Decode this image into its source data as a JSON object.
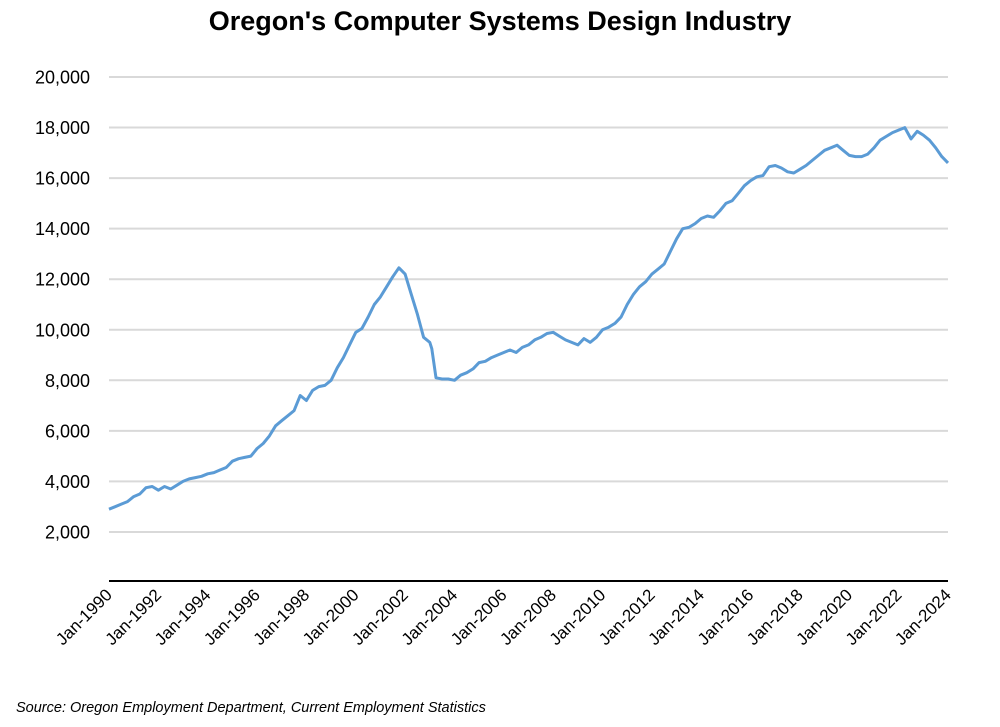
{
  "chart_data": {
    "type": "line",
    "title": "Oregon's Computer Systems Design Industry",
    "xlabel": "",
    "ylabel": "",
    "source": "Source: Oregon Employment Department, Current Employment Statistics",
    "ylim": [
      0,
      20000
    ],
    "yticks": [
      2000,
      4000,
      6000,
      8000,
      10000,
      12000,
      14000,
      16000,
      18000,
      20000
    ],
    "ytick_labels": [
      "2,000",
      "4,000",
      "6,000",
      "8,000",
      "10,000",
      "12,000",
      "14,000",
      "16,000",
      "18,000",
      "20,000"
    ],
    "xlim": [
      1990.0,
      2024.0
    ],
    "xticks": [
      1990,
      1992,
      1994,
      1996,
      1998,
      2000,
      2002,
      2004,
      2006,
      2008,
      2010,
      2012,
      2014,
      2016,
      2018,
      2020,
      2022,
      2024
    ],
    "xtick_labels": [
      "Jan-1990",
      "Jan-1992",
      "Jan-1994",
      "Jan-1996",
      "Jan-1998",
      "Jan-2000",
      "Jan-2002",
      "Jan-2004",
      "Jan-2006",
      "Jan-2008",
      "Jan-2010",
      "Jan-2012",
      "Jan-2014",
      "Jan-2016",
      "Jan-2018",
      "Jan-2020",
      "Jan-2022",
      "Jan-2024"
    ],
    "grid": true,
    "legend": "none",
    "series": [
      {
        "name": "Computer Systems Design Employment",
        "color": "#5B9BD5",
        "x": [
          1990.0,
          1990.25,
          1990.5,
          1990.75,
          1991.0,
          1991.25,
          1991.5,
          1991.75,
          1992.0,
          1992.25,
          1992.5,
          1992.75,
          1993.0,
          1993.25,
          1993.5,
          1993.75,
          1994.0,
          1994.25,
          1994.5,
          1994.75,
          1995.0,
          1995.25,
          1995.5,
          1995.75,
          1996.0,
          1996.25,
          1996.5,
          1996.75,
          1997.0,
          1997.25,
          1997.5,
          1997.75,
          1998.0,
          1998.25,
          1998.5,
          1998.75,
          1999.0,
          1999.25,
          1999.5,
          1999.75,
          2000.0,
          2000.25,
          2000.5,
          2000.75,
          2001.0,
          2001.25,
          2001.5,
          2001.75,
          2002.0,
          2002.25,
          2002.5,
          2002.75,
          2003.0,
          2003.08,
          2003.25,
          2003.5,
          2003.75,
          2004.0,
          2004.25,
          2004.5,
          2004.75,
          2005.0,
          2005.25,
          2005.5,
          2005.75,
          2006.0,
          2006.25,
          2006.5,
          2006.75,
          2007.0,
          2007.25,
          2007.5,
          2007.75,
          2008.0,
          2008.25,
          2008.5,
          2008.75,
          2009.0,
          2009.25,
          2009.5,
          2009.75,
          2010.0,
          2010.25,
          2010.5,
          2010.75,
          2011.0,
          2011.25,
          2011.5,
          2011.75,
          2012.0,
          2012.25,
          2012.5,
          2012.75,
          2013.0,
          2013.25,
          2013.5,
          2013.75,
          2014.0,
          2014.25,
          2014.5,
          2014.75,
          2015.0,
          2015.25,
          2015.5,
          2015.75,
          2016.0,
          2016.25,
          2016.5,
          2016.75,
          2017.0,
          2017.25,
          2017.5,
          2017.75,
          2018.0,
          2018.25,
          2018.5,
          2018.75,
          2019.0,
          2019.25,
          2019.5,
          2019.75,
          2020.0,
          2020.25,
          2020.5,
          2020.75,
          2021.0,
          2021.25,
          2021.5,
          2021.75,
          2022.0,
          2022.25,
          2022.5,
          2022.75,
          2023.0,
          2023.25,
          2023.5,
          2023.75,
          2024.0
        ],
        "values": [
          2900,
          3000,
          3100,
          3200,
          3400,
          3500,
          3750,
          3800,
          3650,
          3800,
          3700,
          3850,
          4000,
          4100,
          4150,
          4200,
          4300,
          4350,
          4450,
          4550,
          4800,
          4900,
          4950,
          5000,
          5300,
          5500,
          5800,
          6200,
          6400,
          6600,
          6800,
          7400,
          7200,
          7600,
          7750,
          7800,
          8000,
          8500,
          8900,
          9400,
          9900,
          10050,
          10500,
          11000,
          11300,
          11700,
          12100,
          12450,
          12200,
          11400,
          10600,
          9700,
          9500,
          9250,
          8100,
          8050,
          8050,
          8000,
          8200,
          8300,
          8450,
          8700,
          8750,
          8900,
          9000,
          9100,
          9200,
          9100,
          9300,
          9400,
          9600,
          9700,
          9850,
          9900,
          9750,
          9600,
          9500,
          9400,
          9650,
          9500,
          9700,
          10000,
          10100,
          10250,
          10500,
          11000,
          11400,
          11700,
          11900,
          12200,
          12400,
          12600,
          13100,
          13600,
          14000,
          14050,
          14200,
          14400,
          14500,
          14450,
          14700,
          15000,
          15100,
          15400,
          15700,
          15900,
          16050,
          16100,
          16450,
          16500,
          16400,
          16250,
          16200,
          16350,
          16500,
          16700,
          16900,
          17100,
          17200,
          17300,
          17100,
          16900,
          16850,
          16850,
          16950,
          17200,
          17500,
          17650,
          17800,
          17900,
          18000,
          17550,
          17850,
          17700,
          17500,
          17200,
          16850,
          16600
        ]
      }
    ]
  }
}
